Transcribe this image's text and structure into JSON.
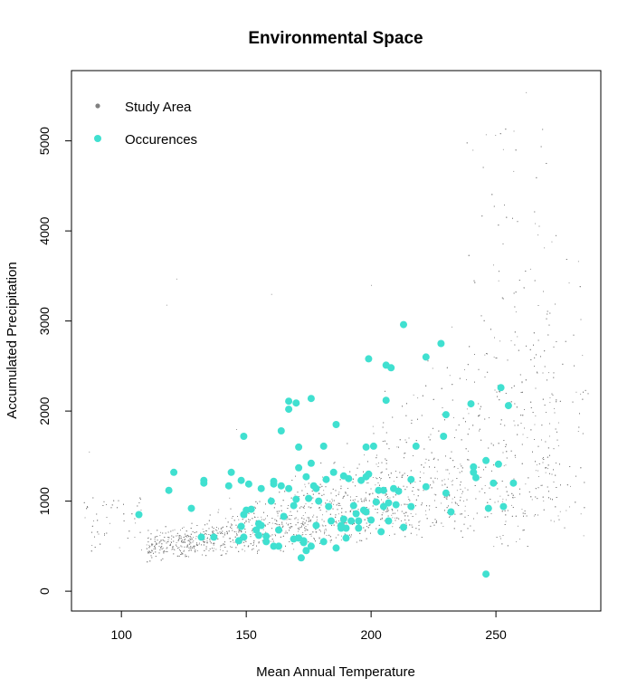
{
  "chart_data": {
    "type": "scatter",
    "title": "Environmental Space",
    "xlabel": "Mean Annual Temperature",
    "ylabel": "Accumulated Precipitation",
    "xlim": [
      80,
      292
    ],
    "ylim": [
      -220,
      5780
    ],
    "x_ticks": [
      100,
      150,
      200,
      250
    ],
    "y_ticks": [
      0,
      1000,
      2000,
      3000,
      4000,
      5000
    ],
    "legend": {
      "position": "top-left",
      "entries": [
        {
          "name": "Study Area",
          "color": "#808080"
        },
        {
          "name": "Occurences",
          "color": "#40E0D0"
        }
      ]
    },
    "series": [
      {
        "name": "Study Area",
        "color": "#808080",
        "marker": "dot",
        "approximate_extent": {
          "x": [
            85,
            287
          ],
          "y": [
            50,
            5550
          ]
        }
      },
      {
        "name": "Occurences",
        "color": "#40E0D0",
        "marker": "filled-circle",
        "points": [
          [
            107,
            850
          ],
          [
            119,
            1120
          ],
          [
            121,
            1320
          ],
          [
            128,
            920
          ],
          [
            132,
            600
          ],
          [
            133,
            1200
          ],
          [
            133,
            1230
          ],
          [
            137,
            600
          ],
          [
            143,
            1170
          ],
          [
            144,
            1320
          ],
          [
            147,
            560
          ],
          [
            148,
            1230
          ],
          [
            148,
            720
          ],
          [
            149,
            1720
          ],
          [
            149,
            850
          ],
          [
            149,
            600
          ],
          [
            150,
            900
          ],
          [
            151,
            1190
          ],
          [
            152,
            910
          ],
          [
            154,
            680
          ],
          [
            155,
            620
          ],
          [
            155,
            750
          ],
          [
            156,
            730
          ],
          [
            156,
            1140
          ],
          [
            158,
            610
          ],
          [
            158,
            550
          ],
          [
            160,
            1000
          ],
          [
            161,
            1190
          ],
          [
            161,
            1220
          ],
          [
            161,
            500
          ],
          [
            163,
            500
          ],
          [
            163,
            680
          ],
          [
            164,
            1780
          ],
          [
            164,
            1170
          ],
          [
            165,
            830
          ],
          [
            167,
            2020
          ],
          [
            167,
            2110
          ],
          [
            167,
            1140
          ],
          [
            169,
            580
          ],
          [
            169,
            950
          ],
          [
            170,
            2090
          ],
          [
            170,
            1020
          ],
          [
            171,
            1600
          ],
          [
            171,
            1370
          ],
          [
            171,
            590
          ],
          [
            172,
            370
          ],
          [
            173,
            540
          ],
          [
            173,
            560
          ],
          [
            174,
            1270
          ],
          [
            174,
            450
          ],
          [
            175,
            1030
          ],
          [
            176,
            1420
          ],
          [
            176,
            2140
          ],
          [
            176,
            500
          ],
          [
            177,
            1170
          ],
          [
            178,
            1140
          ],
          [
            178,
            730
          ],
          [
            179,
            1000
          ],
          [
            181,
            550
          ],
          [
            181,
            1610
          ],
          [
            182,
            1240
          ],
          [
            183,
            940
          ],
          [
            184,
            780
          ],
          [
            185,
            1320
          ],
          [
            186,
            1850
          ],
          [
            186,
            480
          ],
          [
            188,
            700
          ],
          [
            188,
            730
          ],
          [
            189,
            1280
          ],
          [
            189,
            800
          ],
          [
            190,
            700
          ],
          [
            190,
            590
          ],
          [
            191,
            1250
          ],
          [
            192,
            780
          ],
          [
            193,
            950
          ],
          [
            194,
            860
          ],
          [
            195,
            700
          ],
          [
            195,
            780
          ],
          [
            196,
            1230
          ],
          [
            197,
            900
          ],
          [
            198,
            1600
          ],
          [
            198,
            880
          ],
          [
            198,
            1270
          ],
          [
            199,
            1300
          ],
          [
            199,
            2580
          ],
          [
            200,
            790
          ],
          [
            201,
            1610
          ],
          [
            202,
            990
          ],
          [
            203,
            1120
          ],
          [
            204,
            660
          ],
          [
            205,
            1120
          ],
          [
            205,
            940
          ],
          [
            206,
            2510
          ],
          [
            206,
            2120
          ],
          [
            207,
            780
          ],
          [
            207,
            980
          ],
          [
            208,
            2480
          ],
          [
            209,
            1140
          ],
          [
            210,
            960
          ],
          [
            211,
            1110
          ],
          [
            213,
            2960
          ],
          [
            213,
            710
          ],
          [
            216,
            1240
          ],
          [
            216,
            940
          ],
          [
            218,
            1610
          ],
          [
            222,
            1160
          ],
          [
            222,
            2600
          ],
          [
            228,
            2750
          ],
          [
            229,
            1720
          ],
          [
            230,
            1090
          ],
          [
            230,
            1960
          ],
          [
            232,
            880
          ],
          [
            240,
            2080
          ],
          [
            241,
            1380
          ],
          [
            241,
            1320
          ],
          [
            242,
            1260
          ],
          [
            246,
            1450
          ],
          [
            247,
            920
          ],
          [
            249,
            1200
          ],
          [
            251,
            1410
          ],
          [
            252,
            2260
          ],
          [
            253,
            940
          ],
          [
            255,
            2060
          ],
          [
            246,
            190
          ],
          [
            257,
            1200
          ]
        ]
      }
    ]
  }
}
